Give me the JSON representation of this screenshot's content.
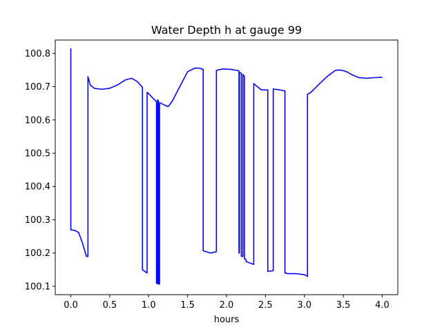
{
  "chart_data": {
    "type": "line",
    "title": "Water Depth h at gauge 99",
    "xlabel": "hours",
    "ylabel": "",
    "xlim": [
      -0.2,
      4.2
    ],
    "ylim": [
      100.075,
      100.84
    ],
    "xticks": [
      0.0,
      0.5,
      1.0,
      1.5,
      2.0,
      2.5,
      3.0,
      3.5,
      4.0
    ],
    "xtick_labels": [
      "0.0",
      "0.5",
      "1.0",
      "1.5",
      "2.0",
      "2.5",
      "3.0",
      "3.5",
      "4.0"
    ],
    "yticks": [
      100.1,
      100.2,
      100.3,
      100.4,
      100.5,
      100.6,
      100.7,
      100.8
    ],
    "ytick_labels": [
      "100.1",
      "100.2",
      "100.3",
      "100.4",
      "100.5",
      "100.6",
      "100.7",
      "100.8"
    ],
    "grid": false,
    "legend": "none",
    "series": [
      {
        "color": "#0000ff",
        "x": [
          0.0,
          0.0,
          0.05,
          0.1,
          0.15,
          0.2,
          0.22,
          0.22,
          0.25,
          0.3,
          0.4,
          0.5,
          0.6,
          0.7,
          0.78,
          0.85,
          0.92,
          0.92,
          0.98,
          0.98,
          1.02,
          1.06,
          1.1,
          1.1,
          1.115,
          1.115,
          1.125,
          1.125,
          1.14,
          1.14,
          1.2,
          1.25,
          1.3,
          1.4,
          1.5,
          1.6,
          1.66,
          1.7,
          1.7,
          1.75,
          1.8,
          1.85,
          1.87,
          1.87,
          1.95,
          2.05,
          2.15,
          2.16,
          2.16,
          2.165,
          2.165,
          2.19,
          2.19,
          2.21,
          2.21,
          2.23,
          2.23,
          2.25,
          2.25,
          2.3,
          2.35,
          2.35,
          2.4,
          2.45,
          2.5,
          2.53,
          2.53,
          2.6,
          2.6,
          2.63,
          2.69,
          2.75,
          2.75,
          2.8,
          2.9,
          3.0,
          3.04,
          3.04,
          3.08,
          3.2,
          3.3,
          3.4,
          3.45,
          3.5,
          3.55,
          3.6,
          3.7,
          3.8,
          3.9,
          4.0
        ],
        "y": [
          100.815,
          100.27,
          100.268,
          100.262,
          100.23,
          100.19,
          100.19,
          100.73,
          100.705,
          100.695,
          100.692,
          100.695,
          100.705,
          100.72,
          100.725,
          100.716,
          100.698,
          100.15,
          100.14,
          100.683,
          100.674,
          100.664,
          100.655,
          100.11,
          100.108,
          100.66,
          100.658,
          100.107,
          100.107,
          100.652,
          100.645,
          100.64,
          100.655,
          100.7,
          100.745,
          100.756,
          100.755,
          100.752,
          100.207,
          100.203,
          100.2,
          100.203,
          100.204,
          100.749,
          100.753,
          100.752,
          100.748,
          100.747,
          100.2,
          100.2,
          100.743,
          100.74,
          100.19,
          100.19,
          100.737,
          100.73,
          100.183,
          100.18,
          100.175,
          100.17,
          100.166,
          100.709,
          100.699,
          100.69,
          100.69,
          100.69,
          100.145,
          100.147,
          100.693,
          100.692,
          100.69,
          100.687,
          100.14,
          100.138,
          100.138,
          100.135,
          100.13,
          100.677,
          100.682,
          100.71,
          100.732,
          100.749,
          100.75,
          100.748,
          100.744,
          100.737,
          100.727,
          100.725,
          100.727,
          100.728
        ]
      }
    ]
  }
}
